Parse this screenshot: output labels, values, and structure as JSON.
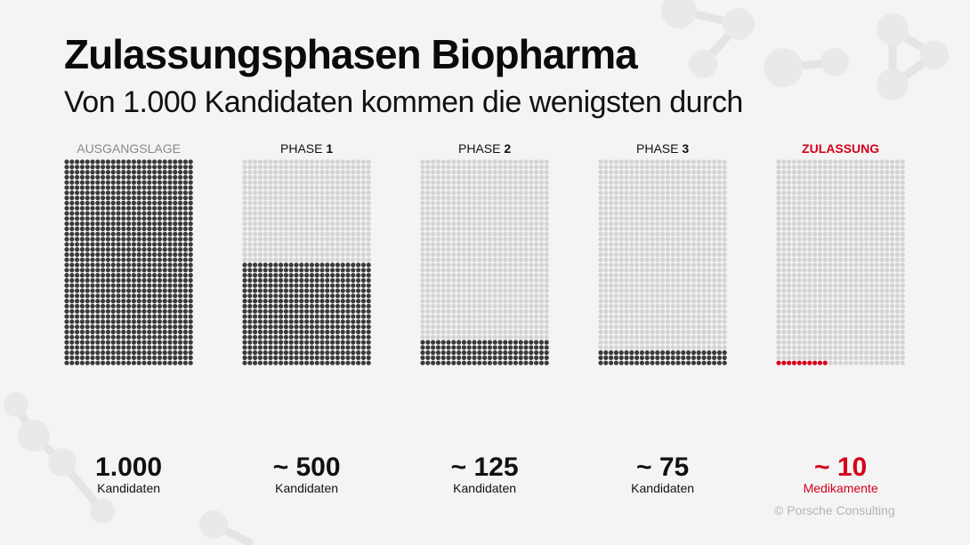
{
  "title": "Zulassungsphasen Biopharma",
  "subtitle": "Von 1.000 Kandidaten kommen die wenigsten durch",
  "copyright": "© Porsche Consulting",
  "chart_data": {
    "type": "waffle",
    "grid_per_panel": {
      "columns": 25,
      "rows": 40,
      "total": 1000
    },
    "colors": {
      "filled": "#3a3a3a",
      "empty": "#d4d4d4",
      "highlight": "#d5001c",
      "muted_label": "#8a8a8a"
    },
    "panels": [
      {
        "label_prefix": "AUSGANGSLAGE",
        "label_number": "",
        "label_style": "muted",
        "filled": 1000,
        "value": "1.000",
        "unit": "Kandidaten",
        "accent": false
      },
      {
        "label_prefix": "PHASE ",
        "label_number": "1",
        "label_style": "normal",
        "filled": 500,
        "value": "~ 500",
        "unit": "Kandidaten",
        "accent": false
      },
      {
        "label_prefix": "PHASE ",
        "label_number": "2",
        "label_style": "normal",
        "filled": 125,
        "value": "~ 125",
        "unit": "Kandidaten",
        "accent": false
      },
      {
        "label_prefix": "PHASE ",
        "label_number": "3",
        "label_style": "normal",
        "filled": 75,
        "value": "~ 75",
        "unit": "Kandidaten",
        "accent": false
      },
      {
        "label_prefix": "ZULASSUNG",
        "label_number": "",
        "label_style": "accent",
        "filled": 10,
        "value": "~ 10",
        "unit": "Medikamente",
        "accent": true
      }
    ]
  }
}
